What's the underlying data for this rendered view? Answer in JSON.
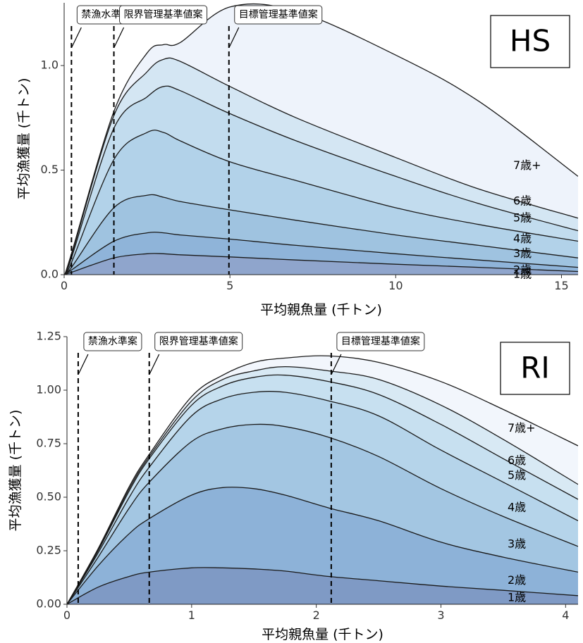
{
  "chart_data": [
    {
      "type": "area",
      "stacked": true,
      "badge": "HS",
      "xlabel": "平均親魚量 (千トン)",
      "ylabel": "平均漁獲量 (千トン)",
      "xlim": [
        0,
        15.5
      ],
      "ylim": [
        0,
        1.3
      ],
      "x_ticks": [
        0,
        5,
        10,
        15
      ],
      "x_tick_labels": [
        "0",
        "5",
        "10",
        "15"
      ],
      "y_ticks": [
        0,
        0.5,
        1.0
      ],
      "y_tick_labels": [
        "0.0",
        "0.5",
        "1.0"
      ],
      "grid": false,
      "colors": [
        "#8fa5cc",
        "#8fb4d9",
        "#9fc3e0",
        "#b2d2e9",
        "#c2dcee",
        "#d4e6f3",
        "#eef3fb"
      ],
      "x": [
        0,
        0.2,
        1.5,
        2.5,
        3.0,
        3.5,
        5.0,
        7.0,
        10.0,
        12.5,
        15.5
      ],
      "cumulative": [
        {
          "name": "1歳",
          "values": [
            0,
            0.01,
            0.08,
            0.1,
            0.1,
            0.095,
            0.085,
            0.07,
            0.05,
            0.035,
            0.015
          ]
        },
        {
          "name": "2歳",
          "values": [
            0,
            0.02,
            0.16,
            0.2,
            0.2,
            0.19,
            0.17,
            0.14,
            0.1,
            0.07,
            0.035
          ]
        },
        {
          "name": "3歳",
          "values": [
            0,
            0.03,
            0.32,
            0.38,
            0.37,
            0.35,
            0.31,
            0.26,
            0.19,
            0.14,
            0.08
          ]
        },
        {
          "name": "4歳",
          "values": [
            0,
            0.05,
            0.55,
            0.68,
            0.68,
            0.64,
            0.54,
            0.45,
            0.32,
            0.24,
            0.16
          ]
        },
        {
          "name": "5歳",
          "values": [
            0,
            0.07,
            0.7,
            0.85,
            0.9,
            0.88,
            0.77,
            0.64,
            0.47,
            0.34,
            0.21
          ]
        },
        {
          "name": "6歳",
          "values": [
            0,
            0.08,
            0.76,
            0.97,
            1.03,
            1.02,
            0.9,
            0.75,
            0.56,
            0.41,
            0.27
          ]
        },
        {
          "name": "7歳+",
          "values": [
            0,
            0.09,
            0.78,
            1.06,
            1.1,
            1.11,
            1.28,
            1.26,
            1.05,
            0.83,
            0.47
          ]
        }
      ],
      "age_labels": [
        {
          "text": "7歳+",
          "value": 0.52
        },
        {
          "text": "6歳",
          "value": 0.35
        },
        {
          "text": "5歳",
          "value": 0.27
        },
        {
          "text": "4歳",
          "value": 0.17
        },
        {
          "text": "3歳",
          "value": 0.1
        },
        {
          "text": "2歳",
          "value": 0.02
        },
        {
          "text": "1歳",
          "value": 0.0
        }
      ],
      "reference_lines": [
        {
          "label": "禁漁水準案",
          "x": 0.22
        },
        {
          "label": "限界管理基準値案",
          "x": 1.5
        },
        {
          "label": "目標管理基準値案",
          "x": 4.97
        }
      ]
    },
    {
      "type": "area",
      "stacked": true,
      "badge": "RI",
      "xlabel": "平均親魚量 (千トン)",
      "ylabel": "平均漁獲量 (千トン)",
      "xlim": [
        0,
        4.1
      ],
      "ylim": [
        0,
        1.25
      ],
      "x_ticks": [
        0,
        1,
        2,
        3,
        4
      ],
      "x_tick_labels": [
        "0",
        "1",
        "2",
        "3",
        "4"
      ],
      "y_ticks": [
        0,
        0.25,
        0.5,
        0.75,
        1.0,
        1.25
      ],
      "y_tick_labels": [
        "0.00",
        "0.25",
        "0.50",
        "0.75",
        "1.00",
        "1.25"
      ],
      "grid": false,
      "colors": [
        "#7f9ac5",
        "#8db2d8",
        "#a3c6e2",
        "#b5d4ea",
        "#c7e0f0",
        "#d8e9f4",
        "#f2f6fc"
      ],
      "x": [
        0,
        0.25,
        0.5,
        0.66,
        1.0,
        1.25,
        1.5,
        1.75,
        2.1,
        2.5,
        3.0,
        3.5,
        4.1
      ],
      "cumulative": [
        {
          "name": "1歳",
          "values": [
            0,
            0.08,
            0.13,
            0.15,
            0.17,
            0.17,
            0.165,
            0.155,
            0.13,
            0.11,
            0.085,
            0.065,
            0.04
          ]
        },
        {
          "name": "2歳",
          "values": [
            0,
            0.18,
            0.33,
            0.4,
            0.51,
            0.545,
            0.54,
            0.51,
            0.45,
            0.39,
            0.29,
            0.22,
            0.15
          ]
        },
        {
          "name": "3歳",
          "values": [
            0,
            0.22,
            0.45,
            0.57,
            0.76,
            0.82,
            0.84,
            0.83,
            0.78,
            0.69,
            0.54,
            0.41,
            0.27
          ]
        },
        {
          "name": "4歳",
          "values": [
            0,
            0.24,
            0.5,
            0.64,
            0.88,
            0.96,
            0.99,
            0.99,
            0.95,
            0.88,
            0.72,
            0.57,
            0.39
          ]
        },
        {
          "name": "5歳",
          "values": [
            0,
            0.25,
            0.53,
            0.68,
            0.93,
            1.02,
            1.06,
            1.07,
            1.04,
            0.98,
            0.84,
            0.68,
            0.49
          ]
        },
        {
          "name": "6歳",
          "values": [
            0,
            0.255,
            0.54,
            0.69,
            0.95,
            1.05,
            1.09,
            1.11,
            1.09,
            1.05,
            0.93,
            0.77,
            0.56
          ]
        },
        {
          "name": "7歳+",
          "values": [
            0,
            0.26,
            0.55,
            0.7,
            0.97,
            1.07,
            1.13,
            1.15,
            1.16,
            1.13,
            1.04,
            0.91,
            0.74
          ]
        }
      ],
      "age_labels": [
        {
          "text": "7歳+",
          "value": 0.82
        },
        {
          "text": "6歳",
          "value": 0.67
        },
        {
          "text": "5歳",
          "value": 0.6
        },
        {
          "text": "4歳",
          "value": 0.45
        },
        {
          "text": "3歳",
          "value": 0.28
        },
        {
          "text": "2歳",
          "value": 0.11
        },
        {
          "text": "1歳",
          "value": 0.03
        }
      ],
      "reference_lines": [
        {
          "label": "禁漁水準案",
          "x": 0.09
        },
        {
          "label": "限界管理基準値案",
          "x": 0.66
        },
        {
          "label": "目標管理基準値案",
          "x": 2.12
        }
      ]
    }
  ]
}
